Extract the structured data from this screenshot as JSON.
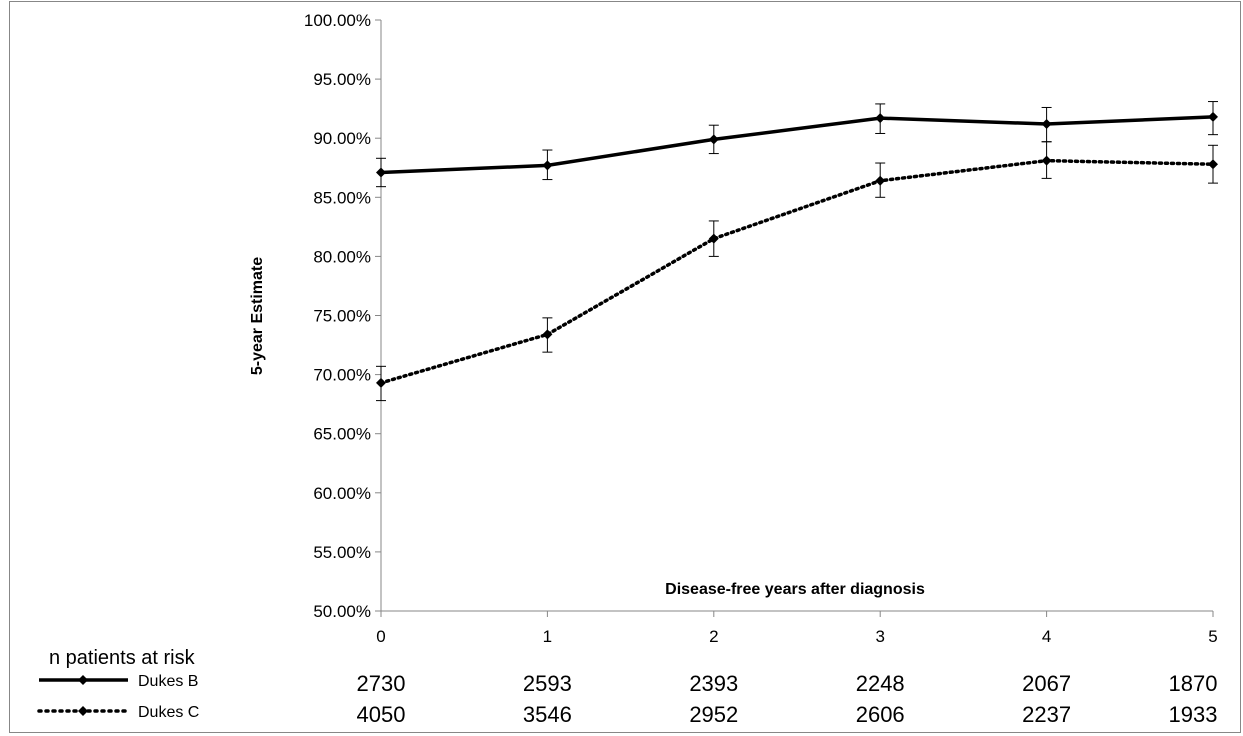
{
  "chart_data": {
    "type": "line",
    "xlabel": "Disease-free years after diagnosis",
    "ylabel": "5-year Estimate",
    "x": [
      0,
      1,
      2,
      3,
      4,
      5
    ],
    "x_tick_labels": [
      "0",
      "1",
      "2",
      "3",
      "4",
      "5"
    ],
    "ylim": [
      0.5,
      1.0
    ],
    "y_tick_values": [
      0.5,
      0.55,
      0.6,
      0.65,
      0.7,
      0.75,
      0.8,
      0.85,
      0.9,
      0.95,
      1.0
    ],
    "y_tick_labels": [
      "50.00%",
      "55.00%",
      "60.00%",
      "65.00%",
      "70.00%",
      "75.00%",
      "80.00%",
      "85.00%",
      "90.00%",
      "95.00%",
      "100.00%"
    ],
    "grid": false,
    "series": [
      {
        "name": "Dukes B",
        "line_style": "solid",
        "color": "#000000",
        "values": [
          0.871,
          0.877,
          0.899,
          0.917,
          0.912,
          0.918
        ],
        "error_low": [
          0.859,
          0.865,
          0.887,
          0.904,
          0.897,
          0.903
        ],
        "error_high": [
          0.883,
          0.89,
          0.911,
          0.929,
          0.926,
          0.931
        ],
        "at_risk": [
          "2730",
          "2593",
          "2393",
          "2248",
          "2067",
          "1870"
        ]
      },
      {
        "name": "Dukes C",
        "line_style": "dotted",
        "color": "#000000",
        "values": [
          0.693,
          0.734,
          0.815,
          0.864,
          0.881,
          0.878
        ],
        "error_low": [
          0.678,
          0.719,
          0.8,
          0.85,
          0.866,
          0.862
        ],
        "error_high": [
          0.707,
          0.748,
          0.83,
          0.879,
          0.897,
          0.894
        ],
        "at_risk": [
          "4050",
          "3546",
          "2952",
          "2606",
          "2237",
          "1933"
        ]
      }
    ],
    "risk_table": {
      "title": "n patients at risk"
    }
  }
}
